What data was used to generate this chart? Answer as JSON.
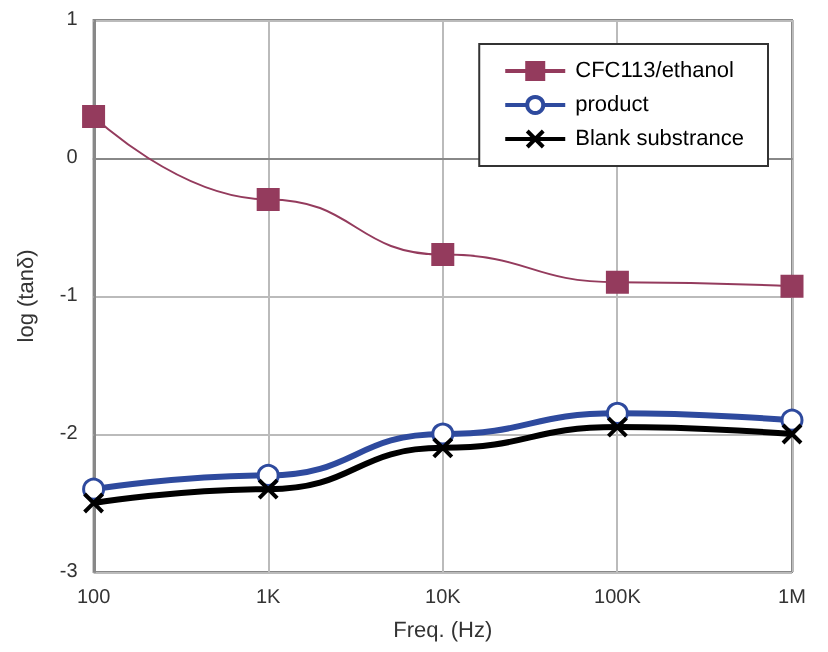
{
  "chart_data": {
    "type": "line",
    "xlabel": "Freq. (Hz)",
    "ylabel": "log (tanδ)",
    "x": [
      100,
      1000,
      10000,
      100000,
      1000000
    ],
    "series": [
      {
        "name": "CFC113/ethanol",
        "color": "#943b5d",
        "marker": "square",
        "values": [
          0.3,
          -0.3,
          -0.7,
          -0.9,
          -0.93
        ]
      },
      {
        "name": "product",
        "color": "#2e4a9e",
        "marker": "circle",
        "values": [
          -2.4,
          -2.3,
          -2.0,
          -1.85,
          -1.9
        ]
      },
      {
        "name": "Blank substrance",
        "color": "#000000",
        "marker": "cross",
        "values": [
          -2.5,
          -2.4,
          -2.1,
          -1.95,
          -2.0
        ]
      }
    ],
    "log": "x",
    "xlim": [
      100,
      1000000
    ],
    "xticks": [
      {
        "value": 100,
        "label": "100"
      },
      {
        "value": 1000,
        "label": "1K"
      },
      {
        "value": 10000,
        "label": "10K"
      },
      {
        "value": 100000,
        "label": "100K"
      },
      {
        "value": 1000000,
        "label": "1M"
      }
    ],
    "ylim": [
      -3,
      1
    ],
    "yticks": [
      -3,
      -2,
      -1,
      0,
      1
    ],
    "grid": true,
    "legend": "top right"
  }
}
